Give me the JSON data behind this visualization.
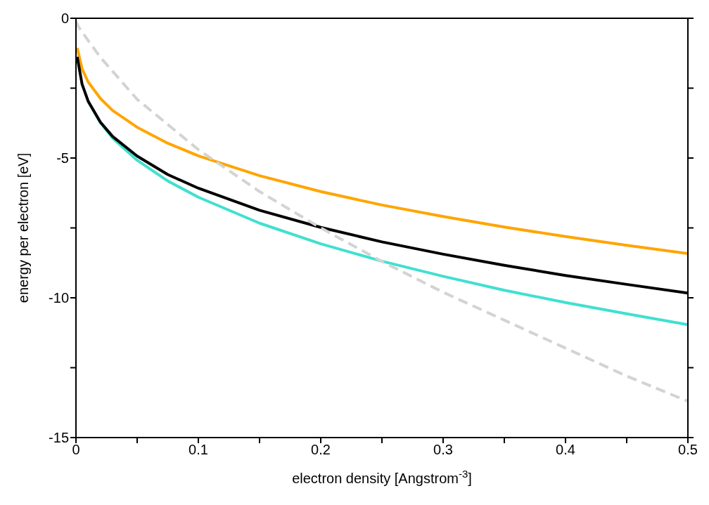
{
  "chart_data": {
    "type": "line",
    "xlabel": "electron density [Angstrom$^{-3}$]",
    "ylabel": "energy per electron [eV]",
    "xlim": [
      0,
      0.5
    ],
    "xticks": [
      0,
      {
        "value": 0.05,
        "label": null
      },
      0.1,
      {
        "value": 0.15,
        "label": null
      },
      0.2,
      {
        "value": 0.25,
        "label": null
      },
      0.3,
      {
        "value": 0.35,
        "label": null
      },
      0.4,
      {
        "value": 0.45,
        "label": null
      },
      0.5
    ],
    "ylim": [
      -15,
      0
    ],
    "yticks": [
      -15,
      {
        "value": -12.5,
        "label": null
      },
      -10,
      {
        "value": -7.5,
        "label": null
      },
      -5,
      {
        "value": -2.5,
        "label": null
      },
      0
    ],
    "legend": false,
    "marker": "none",
    "line_style": "solid",
    "x": [
      0.001,
      0.005,
      0.01,
      0.02,
      0.03,
      0.05,
      0.075,
      0.1,
      0.15,
      0.2,
      0.25,
      0.3,
      0.35,
      0.4,
      0.45,
      0.5
    ],
    "series": [
      {
        "color": "#ffa500",
        "values": [
          -1.06,
          -1.81,
          -2.28,
          -2.87,
          -3.3,
          -3.9,
          -4.47,
          -4.92,
          -5.63,
          -6.2,
          -6.68,
          -7.09,
          -7.47,
          -7.81,
          -8.12,
          -8.42
        ]
      },
      {
        "color": "#40e0d0",
        "values": [
          null,
          null,
          -2.97,
          -3.74,
          -4.29,
          -5.08,
          -5.82,
          -6.4,
          -7.33,
          -8.07,
          -8.69,
          -9.23,
          -9.73,
          -10.17,
          -10.57,
          -10.96
        ]
      },
      {
        "color": "#000000",
        "values": [
          -1.38,
          -2.36,
          -2.97,
          -3.72,
          -4.23,
          -4.93,
          -5.59,
          -6.08,
          -6.87,
          -7.48,
          -8.0,
          -8.44,
          -8.84,
          -9.2,
          -9.52,
          -9.83
        ]
      },
      {
        "color": "#d3d3d3",
        "line_style": "dashed",
        "x": [
          0,
          0.002,
          0.01,
          0.02,
          0.05,
          0.1,
          0.15,
          0.2,
          0.25,
          0.3,
          0.35,
          0.4,
          0.45,
          0.5
        ],
        "values": [
          -0.1,
          -0.3,
          -0.8,
          -1.4,
          -2.9,
          -4.7,
          -6.2,
          -7.5,
          -8.7,
          -9.8,
          -10.8,
          -11.8,
          -12.8,
          -13.7
        ]
      }
    ]
  }
}
